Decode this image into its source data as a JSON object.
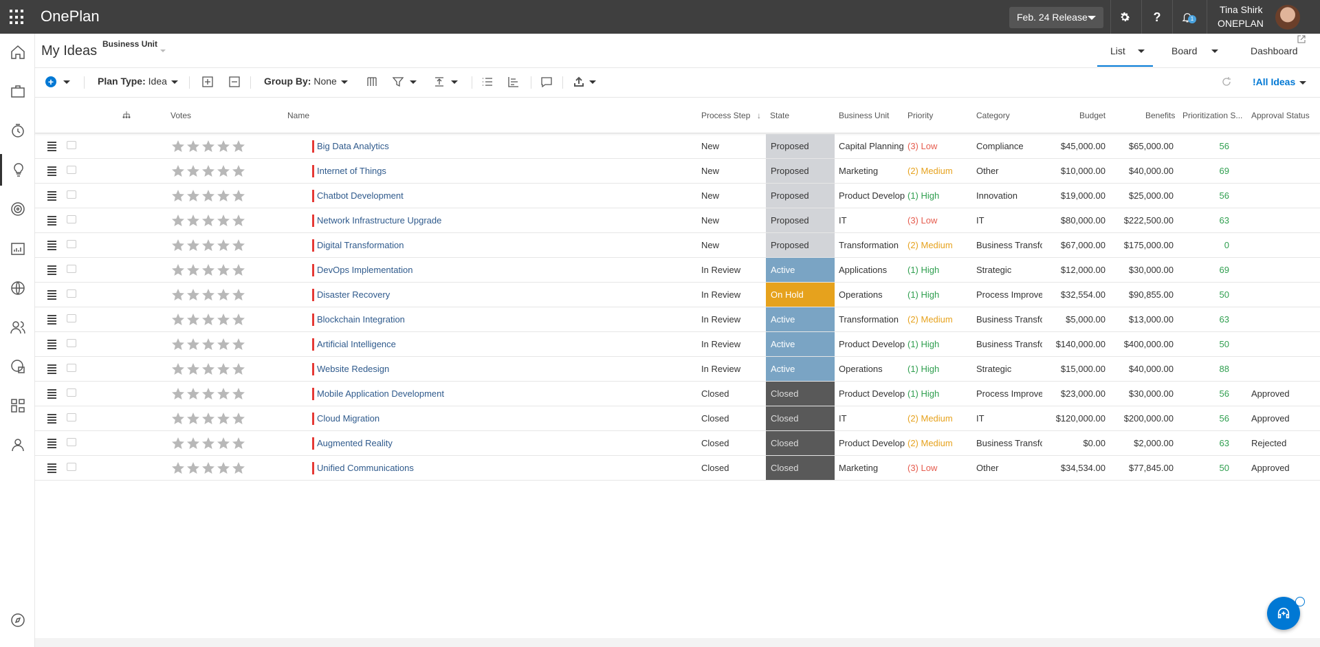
{
  "app": {
    "title": "OnePlan"
  },
  "topbar": {
    "release_label": "Feb. 24 Release",
    "user_name": "Tina Shirk",
    "user_org": "ONEPLAN",
    "notification_count": "1"
  },
  "header": {
    "page_title": "My Ideas",
    "filter_label": "Business Unit",
    "tabs": [
      {
        "label": "List"
      },
      {
        "label": "Board"
      },
      {
        "label": "Dashboard"
      }
    ]
  },
  "toolbar": {
    "plan_type_label": "Plan Type:",
    "plan_type_value": "Idea",
    "group_by_label": "Group By:",
    "group_by_value": "None",
    "view_label": "!All Ideas"
  },
  "columns": [
    "Votes",
    "Name",
    "Process Step",
    "State",
    "Business Unit",
    "Priority",
    "Category",
    "Budget",
    "Benefits",
    "Prioritization S...",
    "Approval Status"
  ],
  "rows": [
    {
      "name": "Big Data Analytics",
      "step": "New",
      "state": "Proposed",
      "state_kind": "proposed",
      "bu": "Capital Planning",
      "priority": "(3) Low",
      "prio_kind": "low",
      "category": "Compliance",
      "budget": "$45,000.00",
      "benefits": "$65,000.00",
      "score": "56",
      "approval": ""
    },
    {
      "name": "Internet of Things",
      "step": "New",
      "state": "Proposed",
      "state_kind": "proposed",
      "bu": "Marketing",
      "priority": "(2) Medium",
      "prio_kind": "med",
      "category": "Other",
      "budget": "$10,000.00",
      "benefits": "$40,000.00",
      "score": "69",
      "approval": ""
    },
    {
      "name": "Chatbot Development",
      "step": "New",
      "state": "Proposed",
      "state_kind": "proposed",
      "bu": "Product Develop",
      "priority": "(1) High",
      "prio_kind": "high",
      "category": "Innovation",
      "budget": "$19,000.00",
      "benefits": "$25,000.00",
      "score": "56",
      "approval": ""
    },
    {
      "name": "Network Infrastructure Upgrade",
      "step": "New",
      "state": "Proposed",
      "state_kind": "proposed",
      "bu": "IT",
      "priority": "(3) Low",
      "prio_kind": "low",
      "category": "IT",
      "budget": "$80,000.00",
      "benefits": "$222,500.00",
      "score": "63",
      "approval": ""
    },
    {
      "name": "Digital Transformation",
      "step": "New",
      "state": "Proposed",
      "state_kind": "proposed",
      "bu": "Transformation",
      "priority": "(2) Medium",
      "prio_kind": "med",
      "category": "Business Transfo",
      "budget": "$67,000.00",
      "benefits": "$175,000.00",
      "score": "0",
      "approval": ""
    },
    {
      "name": "DevOps Implementation",
      "step": "In Review",
      "state": "Active",
      "state_kind": "active",
      "bu": "Applications",
      "priority": "(1) High",
      "prio_kind": "high",
      "category": "Strategic",
      "budget": "$12,000.00",
      "benefits": "$30,000.00",
      "score": "69",
      "approval": ""
    },
    {
      "name": "Disaster Recovery",
      "step": "In Review",
      "state": "On Hold",
      "state_kind": "hold",
      "bu": "Operations",
      "priority": "(1) High",
      "prio_kind": "high",
      "category": "Process Improve",
      "budget": "$32,554.00",
      "benefits": "$90,855.00",
      "score": "50",
      "approval": ""
    },
    {
      "name": "Blockchain Integration",
      "step": "In Review",
      "state": "Active",
      "state_kind": "active",
      "bu": "Transformation",
      "priority": "(2) Medium",
      "prio_kind": "med",
      "category": "Business Transfo",
      "budget": "$5,000.00",
      "benefits": "$13,000.00",
      "score": "63",
      "approval": ""
    },
    {
      "name": "Artificial Intelligence",
      "step": "In Review",
      "state": "Active",
      "state_kind": "active",
      "bu": "Product Develop",
      "priority": "(1) High",
      "prio_kind": "high",
      "category": "Business Transfo",
      "budget": "$140,000.00",
      "benefits": "$400,000.00",
      "score": "50",
      "approval": ""
    },
    {
      "name": "Website Redesign",
      "step": "In Review",
      "state": "Active",
      "state_kind": "active",
      "bu": "Operations",
      "priority": "(1) High",
      "prio_kind": "high",
      "category": "Strategic",
      "budget": "$15,000.00",
      "benefits": "$40,000.00",
      "score": "88",
      "approval": ""
    },
    {
      "name": "Mobile Application Development",
      "step": "Closed",
      "state": "Closed",
      "state_kind": "closed",
      "bu": "Product Develop",
      "priority": "(1) High",
      "prio_kind": "high",
      "category": "Process Improve",
      "budget": "$23,000.00",
      "benefits": "$30,000.00",
      "score": "56",
      "approval": "Approved"
    },
    {
      "name": "Cloud Migration",
      "step": "Closed",
      "state": "Closed",
      "state_kind": "closed",
      "bu": "IT",
      "priority": "(2) Medium",
      "prio_kind": "med",
      "category": "IT",
      "budget": "$120,000.00",
      "benefits": "$200,000.00",
      "score": "56",
      "approval": "Approved"
    },
    {
      "name": "Augmented Reality",
      "step": "Closed",
      "state": "Closed",
      "state_kind": "closed",
      "bu": "Product Develop",
      "priority": "(2) Medium",
      "prio_kind": "med",
      "category": "Business Transfo",
      "budget": "$0.00",
      "benefits": "$2,000.00",
      "score": "63",
      "approval": "Rejected"
    },
    {
      "name": "Unified Communications",
      "step": "Closed",
      "state": "Closed",
      "state_kind": "closed",
      "bu": "Marketing",
      "priority": "(3) Low",
      "prio_kind": "low",
      "category": "Other",
      "budget": "$34,534.00",
      "benefits": "$77,845.00",
      "score": "50",
      "approval": "Approved"
    }
  ],
  "colors": {
    "topbar": "#3f3f3f",
    "accent": "#0078d4",
    "proposed": "#d2d4d8",
    "active": "#7aa4c4",
    "on_hold": "#e6a21d",
    "closed": "#595959"
  }
}
